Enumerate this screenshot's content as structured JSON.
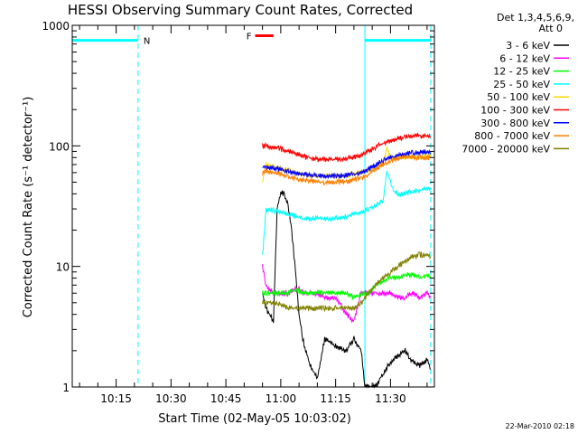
{
  "chart_data": {
    "type": "line",
    "title": "HESSI Observing Summary Count Rates, Corrected",
    "xlabel": "Start Time (02-May-05 10:03:02)",
    "ylabel": "Corrected Count Rate (s⁻¹ detector⁻¹)",
    "yscale": "log",
    "ylim": [
      1,
      1000
    ],
    "xlim": [
      "10:03",
      "11:42"
    ],
    "xticks": [
      "10:15",
      "10:30",
      "10:45",
      "11:00",
      "11:15",
      "11:30"
    ],
    "yticks": [
      "1",
      "10",
      "100",
      "1000"
    ],
    "legend": {
      "placement": "right",
      "header": [
        "Det 1,3,4,5,6,9,",
        "Att 0"
      ],
      "entries": [
        {
          "label": "3 - 6 keV",
          "color": "#000000"
        },
        {
          "label": "6 - 12 keV",
          "color": "#ff00ff"
        },
        {
          "label": "12 - 25 keV",
          "color": "#00ff00"
        },
        {
          "label": "25 - 50 keV",
          "color": "#00ffff"
        },
        {
          "label": "50 - 100 keV",
          "color": "#ffd700"
        },
        {
          "label": "100 - 300 keV",
          "color": "#ff0000"
        },
        {
          "label": "300 - 800 keV",
          "color": "#0000ff"
        },
        {
          "label": "800 - 7000 keV",
          "color": "#ff8000"
        },
        {
          "label": "7000 - 20000 keV",
          "color": "#808000"
        }
      ]
    },
    "bars": [
      {
        "label": "N",
        "color": "#00ffff",
        "value": 750,
        "segments": [
          [
            "10:03",
            "10:21"
          ],
          [
            "11:23",
            "11:41"
          ]
        ]
      },
      {
        "label": "F",
        "color": "#ff0000",
        "value": 820,
        "segments": [
          [
            "10:53",
            "10:58"
          ]
        ]
      }
    ],
    "vlines": [
      {
        "time": "10:03",
        "color": "#00ffff",
        "style": "solid"
      },
      {
        "time": "10:21",
        "color": "#00ffff",
        "style": "dashed"
      },
      {
        "time": "11:23",
        "color": "#00ffff",
        "style": "solid"
      },
      {
        "time": "11:41",
        "color": "#00ffff",
        "style": "dashed"
      }
    ],
    "series": [
      {
        "name": "3 - 6 keV",
        "color": "#000000",
        "x": [
          "10:55",
          "10:56",
          "10:58",
          "10:59",
          "11:00",
          "11:01",
          "11:02",
          "11:03",
          "11:04",
          "11:05",
          "11:06",
          "11:08",
          "11:10",
          "11:12",
          "11:15",
          "11:18",
          "11:20",
          "11:22",
          "11:23",
          "11:26",
          "11:28",
          "11:30",
          "11:32",
          "11:34",
          "11:36",
          "11:38",
          "11:40",
          "11:41"
        ],
        "y": [
          6,
          4.5,
          3.5,
          30,
          42,
          40,
          32,
          20,
          9,
          4,
          2.5,
          1.5,
          1.2,
          2.5,
          2.2,
          2.0,
          2.5,
          2.0,
          1.0,
          1.0,
          1.3,
          1.6,
          1.8,
          2.0,
          1.6,
          1.5,
          1.7,
          1.4
        ]
      },
      {
        "name": "6 - 12 keV",
        "color": "#ff00ff",
        "x": [
          "10:55",
          "10:56",
          "10:58",
          "11:00",
          "11:02",
          "11:04",
          "11:05",
          "11:06",
          "11:08",
          "11:10",
          "11:12",
          "11:15",
          "11:18",
          "11:20",
          "11:22",
          "11:24",
          "11:26",
          "11:28",
          "11:30",
          "11:32",
          "11:34",
          "11:36",
          "11:38",
          "11:40",
          "11:41"
        ],
        "y": [
          10,
          7,
          6,
          6,
          6,
          6.5,
          6.5,
          6,
          6,
          6,
          5.5,
          5.5,
          4,
          3.5,
          6,
          6,
          6,
          6,
          6,
          5.5,
          5.5,
          6,
          5.5,
          6,
          5.5
        ]
      },
      {
        "name": "12 - 25 keV",
        "color": "#00ff00",
        "x": [
          "10:55",
          "10:56",
          "10:58",
          "11:00",
          "11:02",
          "11:04",
          "11:06",
          "11:08",
          "11:10",
          "11:12",
          "11:15",
          "11:18",
          "11:20",
          "11:22",
          "11:24",
          "11:26",
          "11:28",
          "11:30",
          "11:32",
          "11:34",
          "11:36",
          "11:38",
          "11:40",
          "11:41"
        ],
        "y": [
          6,
          6,
          6,
          6,
          6,
          6.5,
          6,
          6,
          6,
          6,
          6,
          6,
          5.5,
          6,
          6,
          7,
          7.5,
          8,
          8,
          8.5,
          8.5,
          8,
          8.5,
          8
        ]
      },
      {
        "name": "25 - 50 keV",
        "color": "#00ffff",
        "x": [
          "10:55",
          "10:56",
          "10:58",
          "11:00",
          "11:02",
          "11:04",
          "11:06",
          "11:08",
          "11:10",
          "11:12",
          "11:15",
          "11:18",
          "11:20",
          "11:22",
          "11:24",
          "11:26",
          "11:28",
          "11:29",
          "11:30",
          "11:31",
          "11:32",
          "11:34",
          "11:36",
          "11:38",
          "11:40",
          "11:41"
        ],
        "y": [
          12,
          30,
          29,
          28,
          27,
          26,
          25,
          25,
          25,
          25,
          25,
          26,
          27,
          28,
          30,
          32,
          35,
          60,
          50,
          42,
          40,
          40,
          42,
          43,
          44,
          44
        ]
      },
      {
        "name": "50 - 100 keV",
        "color": "#ffd700",
        "x": [
          "10:55",
          "10:56",
          "10:58",
          "11:00",
          "11:02",
          "11:04",
          "11:06",
          "11:08",
          "11:10",
          "11:12",
          "11:15",
          "11:18",
          "11:20",
          "11:22",
          "11:24",
          "11:26",
          "11:28",
          "11:29",
          "11:30",
          "11:32",
          "11:34",
          "11:36",
          "11:38",
          "11:40",
          "11:41"
        ],
        "y": [
          50,
          70,
          67,
          65,
          63,
          60,
          58,
          57,
          56,
          56,
          56,
          57,
          58,
          60,
          63,
          67,
          72,
          95,
          80,
          80,
          80,
          81,
          81,
          82,
          82
        ]
      },
      {
        "name": "100 - 300 keV",
        "color": "#ff0000",
        "x": [
          "10:55",
          "10:56",
          "10:58",
          "11:00",
          "11:02",
          "11:04",
          "11:06",
          "11:08",
          "11:10",
          "11:12",
          "11:15",
          "11:18",
          "11:20",
          "11:22",
          "11:24",
          "11:26",
          "11:28",
          "11:30",
          "11:32",
          "11:34",
          "11:36",
          "11:38",
          "11:40",
          "11:41"
        ],
        "y": [
          100,
          100,
          97,
          94,
          90,
          86,
          82,
          80,
          78,
          77,
          77,
          78,
          80,
          84,
          90,
          98,
          105,
          110,
          115,
          118,
          120,
          122,
          120,
          120
        ]
      },
      {
        "name": "300 - 800 keV",
        "color": "#0000ff",
        "x": [
          "10:55",
          "10:56",
          "10:58",
          "11:00",
          "11:02",
          "11:04",
          "11:06",
          "11:08",
          "11:10",
          "11:12",
          "11:15",
          "11:18",
          "11:20",
          "11:22",
          "11:24",
          "11:26",
          "11:28",
          "11:30",
          "11:32",
          "11:34",
          "11:36",
          "11:38",
          "11:40",
          "11:41"
        ],
        "y": [
          66,
          66,
          65,
          64,
          62,
          60,
          58,
          57,
          56,
          56,
          56,
          57,
          58,
          60,
          64,
          70,
          75,
          80,
          83,
          85,
          87,
          88,
          88,
          88
        ]
      },
      {
        "name": "800 - 7000 keV",
        "color": "#ff8000",
        "x": [
          "10:55",
          "10:56",
          "10:58",
          "11:00",
          "11:02",
          "11:04",
          "11:06",
          "11:08",
          "11:10",
          "11:12",
          "11:15",
          "11:18",
          "11:20",
          "11:22",
          "11:24",
          "11:26",
          "11:28",
          "11:30",
          "11:32",
          "11:34",
          "11:36",
          "11:38",
          "11:40",
          "11:41"
        ],
        "y": [
          60,
          62,
          60,
          58,
          55,
          53,
          52,
          51,
          50,
          50,
          50,
          51,
          52,
          54,
          58,
          64,
          70,
          75,
          78,
          80,
          80,
          81,
          80,
          80
        ]
      },
      {
        "name": "7000 - 20000 keV",
        "color": "#808000",
        "x": [
          "10:55",
          "10:56",
          "10:58",
          "11:00",
          "11:02",
          "11:04",
          "11:06",
          "11:08",
          "11:10",
          "11:12",
          "11:15",
          "11:18",
          "11:20",
          "11:22",
          "11:24",
          "11:26",
          "11:28",
          "11:30",
          "11:32",
          "11:34",
          "11:36",
          "11:38",
          "11:40",
          "11:41"
        ],
        "y": [
          5,
          5,
          5,
          4.8,
          4.5,
          4.5,
          4.5,
          4.5,
          4.5,
          4.5,
          4.5,
          4.5,
          4.5,
          5,
          6,
          7,
          8,
          9,
          10,
          11,
          12,
          12.5,
          12.5,
          12
        ]
      }
    ]
  },
  "footer": {
    "date": "22-Mar-2010 02:18"
  }
}
